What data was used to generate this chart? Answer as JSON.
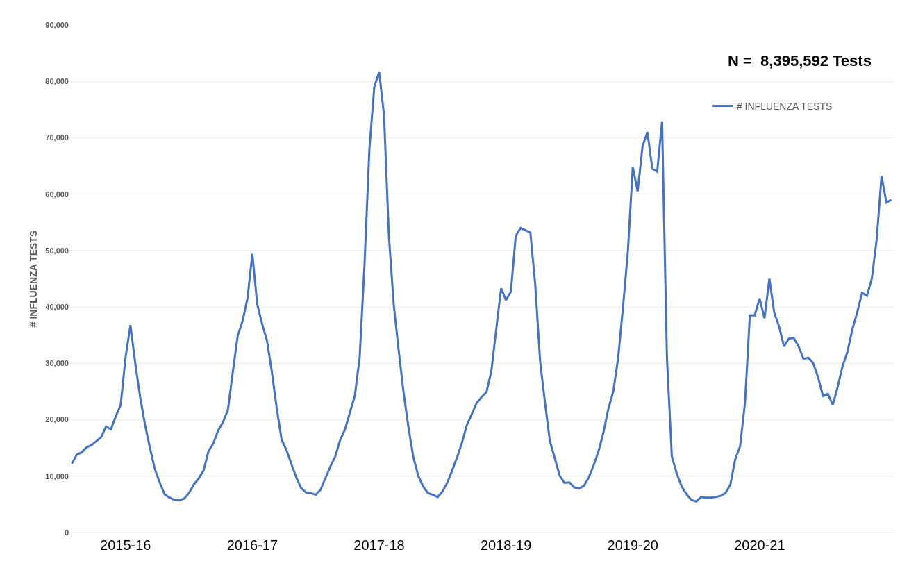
{
  "chart_data": {
    "type": "line",
    "ylabel": "# INFLUENZA TESTS",
    "annotations": [
      "N =  8,395,592 Tests"
    ],
    "categories": [
      null,
      null,
      null,
      null,
      null,
      null,
      null,
      null,
      null,
      null,
      null,
      "2015-16",
      null,
      null,
      null,
      null,
      null,
      null,
      null,
      null,
      null,
      null,
      null,
      null,
      null,
      null,
      null,
      null,
      null,
      null,
      null,
      null,
      null,
      null,
      null,
      null,
      null,
      "2016-17",
      null,
      null,
      null,
      null,
      null,
      null,
      null,
      null,
      null,
      null,
      null,
      null,
      null,
      null,
      null,
      null,
      null,
      null,
      null,
      null,
      null,
      null,
      null,
      null,
      null,
      "2017-18",
      null,
      null,
      null,
      null,
      null,
      null,
      null,
      null,
      null,
      null,
      null,
      null,
      null,
      null,
      null,
      null,
      null,
      null,
      null,
      null,
      null,
      null,
      null,
      null,
      null,
      "2018-19",
      null,
      null,
      null,
      null,
      null,
      null,
      null,
      null,
      null,
      null,
      null,
      null,
      null,
      null,
      null,
      null,
      null,
      null,
      null,
      null,
      null,
      null,
      null,
      null,
      null,
      "2019-20",
      null,
      null,
      null,
      null,
      null,
      null,
      null,
      null,
      null,
      null,
      null,
      null,
      null,
      null,
      null,
      null,
      null,
      null,
      null,
      null,
      null,
      null,
      null,
      null,
      null,
      "2020-21",
      null,
      null,
      null,
      null,
      null,
      null,
      null,
      null,
      null,
      null,
      null,
      null,
      null,
      null,
      null,
      null,
      null,
      null,
      null,
      null,
      null,
      null,
      null,
      null,
      null,
      null,
      null
    ],
    "series": [
      {
        "name": "# INFLUENZA TESTS",
        "color": "#4472c4",
        "values": [
          12200,
          13800,
          14200,
          15100,
          15500,
          16200,
          16900,
          18800,
          18300,
          20600,
          22600,
          31000,
          36800,
          30000,
          24000,
          19100,
          15000,
          11300,
          8900,
          6800,
          6200,
          5800,
          5700,
          6000,
          7000,
          8500,
          9600,
          11000,
          14400,
          15800,
          18100,
          19600,
          21800,
          28500,
          34900,
          37500,
          41500,
          49400,
          40500,
          37000,
          34000,
          28500,
          22000,
          16500,
          14600,
          12200,
          9800,
          7900,
          7100,
          7000,
          6700,
          7600,
          9700,
          11700,
          13500,
          16400,
          18300,
          21300,
          24200,
          31000,
          47600,
          68000,
          79000,
          81700,
          74000,
          52500,
          40300,
          32300,
          24900,
          18700,
          13400,
          10100,
          8200,
          7000,
          6700,
          6300,
          7300,
          8900,
          11100,
          13400,
          16000,
          19100,
          21000,
          23000,
          24000,
          24900,
          28600,
          36000,
          43300,
          41200,
          42700,
          52600,
          54000,
          53600,
          53200,
          44000,
          30400,
          23000,
          16200,
          13200,
          10100,
          8800,
          8900,
          8000,
          7800,
          8300,
          9800,
          12000,
          14500,
          17800,
          22000,
          25000,
          31000,
          40000,
          50000,
          64800,
          60500,
          68500,
          71000,
          64500,
          64000,
          72900,
          31000,
          13500,
          10500,
          8200,
          6800,
          5800,
          5500,
          6300,
          6200,
          6200,
          6300,
          6500,
          7000,
          8500,
          13000,
          15300,
          23000,
          38500,
          38500,
          41500,
          38000,
          45000,
          39000,
          36500,
          33000,
          34400,
          34500,
          33000,
          30800,
          31000,
          30000,
          27500,
          24200,
          24600,
          22600,
          25800,
          29500,
          32000,
          36000,
          39000,
          42500,
          42000,
          45000,
          52000,
          63200,
          58500,
          59000
        ]
      }
    ],
    "ylim": [
      0,
      90000
    ],
    "yticks": [
      0,
      {
        "value": 10000,
        "label": "10,000"
      },
      {
        "value": 20000,
        "label": "20,000"
      },
      {
        "value": 30000,
        "label": "30,000"
      },
      {
        "value": 40000,
        "label": "40,000"
      },
      {
        "value": 50000,
        "label": "50,000"
      },
      {
        "value": 60000,
        "label": "60,000"
      },
      {
        "value": 70000,
        "label": "70,000"
      },
      {
        "value": 80000,
        "label": "80,000"
      },
      {
        "value": 90000,
        "label": "90,000"
      }
    ],
    "grid": "y",
    "legend": "top right",
    "marker": "none",
    "line_style": "solid"
  }
}
